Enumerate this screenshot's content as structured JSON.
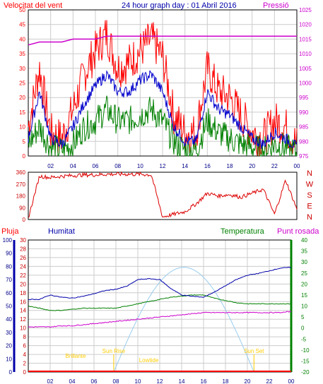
{
  "header": {
    "title": "24 hour graph day : 01 Abril 2016",
    "wind_label": "Velocitat del vent",
    "pressure_label": "Pressió"
  },
  "lower_labels": {
    "rain": "Pluja",
    "humidity": "Humitat",
    "temperature": "Temperatura",
    "dewpoint": "Punt rosada"
  },
  "sun_labels": {
    "twilight_start": "Brillante",
    "sunrise": "Sun Rise",
    "zenith": "Lowtide",
    "sunset": "Sun Set"
  },
  "colors": {
    "wind_gust": "#ff0000",
    "wind_avg": "#0000cc",
    "wind_min": "#008000",
    "pressure": "#cc00cc",
    "direction": "#dd0000",
    "humidity": "#0000aa",
    "temperature": "#008000",
    "dewpoint": "#cc00cc",
    "sun": "#99ccee",
    "sun_text": "#ffcc00",
    "frame": "#000000",
    "grid": "#cccccc"
  },
  "chart_data": [
    {
      "type": "line",
      "name": "wind_pressure",
      "x_ticks": [
        "02",
        "04",
        "06",
        "08",
        "10",
        "12",
        "14",
        "16",
        "18",
        "20",
        "22",
        "00"
      ],
      "ylim_wind": [
        0,
        50
      ],
      "yticks_wind": [
        0,
        5,
        10,
        15,
        20,
        25,
        30,
        35,
        40,
        45,
        50
      ],
      "ylim_pressure": [
        975,
        1025
      ],
      "yticks_pressure": [
        975,
        980,
        985,
        990,
        995,
        1000,
        1005,
        1010,
        1015,
        1020,
        1025
      ],
      "hours": [
        0,
        1,
        2,
        3,
        4,
        5,
        6,
        7,
        8,
        9,
        10,
        11,
        12,
        13,
        14,
        15,
        16,
        17,
        18,
        19,
        20,
        21,
        22,
        23,
        24
      ],
      "series": [
        {
          "key": "gust",
          "values": [
            10,
            30,
            8,
            6,
            16,
            28,
            36,
            42,
            30,
            32,
            36,
            40,
            34,
            14,
            8,
            8,
            30,
            22,
            20,
            14,
            8,
            6,
            12,
            10,
            4
          ]
        },
        {
          "key": "avg",
          "values": [
            6,
            22,
            6,
            4,
            10,
            18,
            24,
            28,
            22,
            22,
            26,
            28,
            22,
            10,
            5,
            5,
            22,
            16,
            14,
            10,
            6,
            4,
            8,
            6,
            3
          ]
        },
        {
          "key": "min",
          "values": [
            4,
            10,
            3,
            2,
            4,
            10,
            12,
            16,
            12,
            12,
            14,
            16,
            12,
            5,
            2,
            2,
            12,
            8,
            6,
            4,
            3,
            2,
            4,
            3,
            1
          ]
        },
        {
          "key": "pressure",
          "values": [
            1013,
            1014,
            1014,
            1014,
            1015,
            1015,
            1015,
            1016,
            1016,
            1016,
            1016,
            1016,
            1016,
            1016,
            1016,
            1016,
            1016,
            1016,
            1016,
            1016,
            1016,
            1016,
            1016,
            1016,
            1016
          ]
        }
      ]
    },
    {
      "type": "line",
      "name": "wind_direction",
      "yticks": [
        0,
        90,
        180,
        270,
        360
      ],
      "compass": [
        "N",
        "W",
        "S",
        "E",
        "N"
      ],
      "hours": [
        0,
        1,
        2,
        3,
        4,
        5,
        6,
        7,
        8,
        9,
        10,
        11,
        12,
        13,
        14,
        15,
        16,
        17,
        18,
        19,
        20,
        21,
        22,
        23,
        24
      ],
      "values": [
        10,
        330,
        320,
        330,
        335,
        340,
        340,
        345,
        345,
        345,
        345,
        340,
        20,
        40,
        60,
        120,
        200,
        180,
        190,
        170,
        200,
        230,
        40,
        300,
        80
      ]
    },
    {
      "type": "line",
      "name": "humidity_temperature",
      "x_ticks": [
        "02",
        "04",
        "06",
        "08",
        "10",
        "12",
        "14",
        "16",
        "18",
        "20",
        "22",
        "00"
      ],
      "ylim_rain": [
        0,
        100
      ],
      "yticks_rain": [
        0,
        10,
        20,
        30,
        40,
        50,
        60,
        70,
        80,
        90,
        100
      ],
      "ylim_humidity": [
        0,
        30
      ],
      "yticks_humidity": [
        0,
        2,
        4,
        6,
        8,
        10,
        12,
        14,
        16,
        18,
        20,
        22,
        24,
        26,
        28,
        30
      ],
      "ylim_temp": [
        -20,
        40
      ],
      "yticks_temp": [
        -20,
        -15,
        -10,
        -5,
        0,
        5,
        10,
        15,
        20,
        25,
        30,
        35,
        40
      ],
      "hours": [
        0,
        1,
        2,
        3,
        4,
        5,
        6,
        7,
        8,
        9,
        10,
        11,
        12,
        13,
        14,
        15,
        16,
        17,
        18,
        19,
        20,
        21,
        22,
        23,
        24
      ],
      "series": [
        {
          "key": "humidity",
          "values": [
            16.5,
            16.5,
            17.5,
            17,
            16.8,
            17.2,
            17.8,
            18.5,
            18.8,
            19.5,
            21,
            21.2,
            21.0,
            19,
            17.5,
            17.2,
            17,
            18.2,
            19.6,
            21,
            22,
            22.4,
            23,
            23.6,
            23.8
          ]
        },
        {
          "key": "temperature",
          "values": [
            10,
            9,
            8,
            8,
            8.5,
            9,
            9,
            9,
            9,
            10,
            11,
            12,
            13,
            14,
            14.5,
            15,
            15,
            13.5,
            12.5,
            11.5,
            11,
            11,
            11,
            11,
            11
          ]
        },
        {
          "key": "dewpoint",
          "values": [
            0.5,
            0.5,
            0.5,
            1,
            1,
            1.5,
            2,
            2.5,
            3,
            3.5,
            4,
            4.5,
            5,
            5.5,
            6,
            6.5,
            7,
            7,
            7,
            7,
            7,
            7,
            7,
            7,
            7.5
          ]
        }
      ],
      "sunrise_hour": 7.8,
      "sunset_hour": 20.6
    }
  ]
}
